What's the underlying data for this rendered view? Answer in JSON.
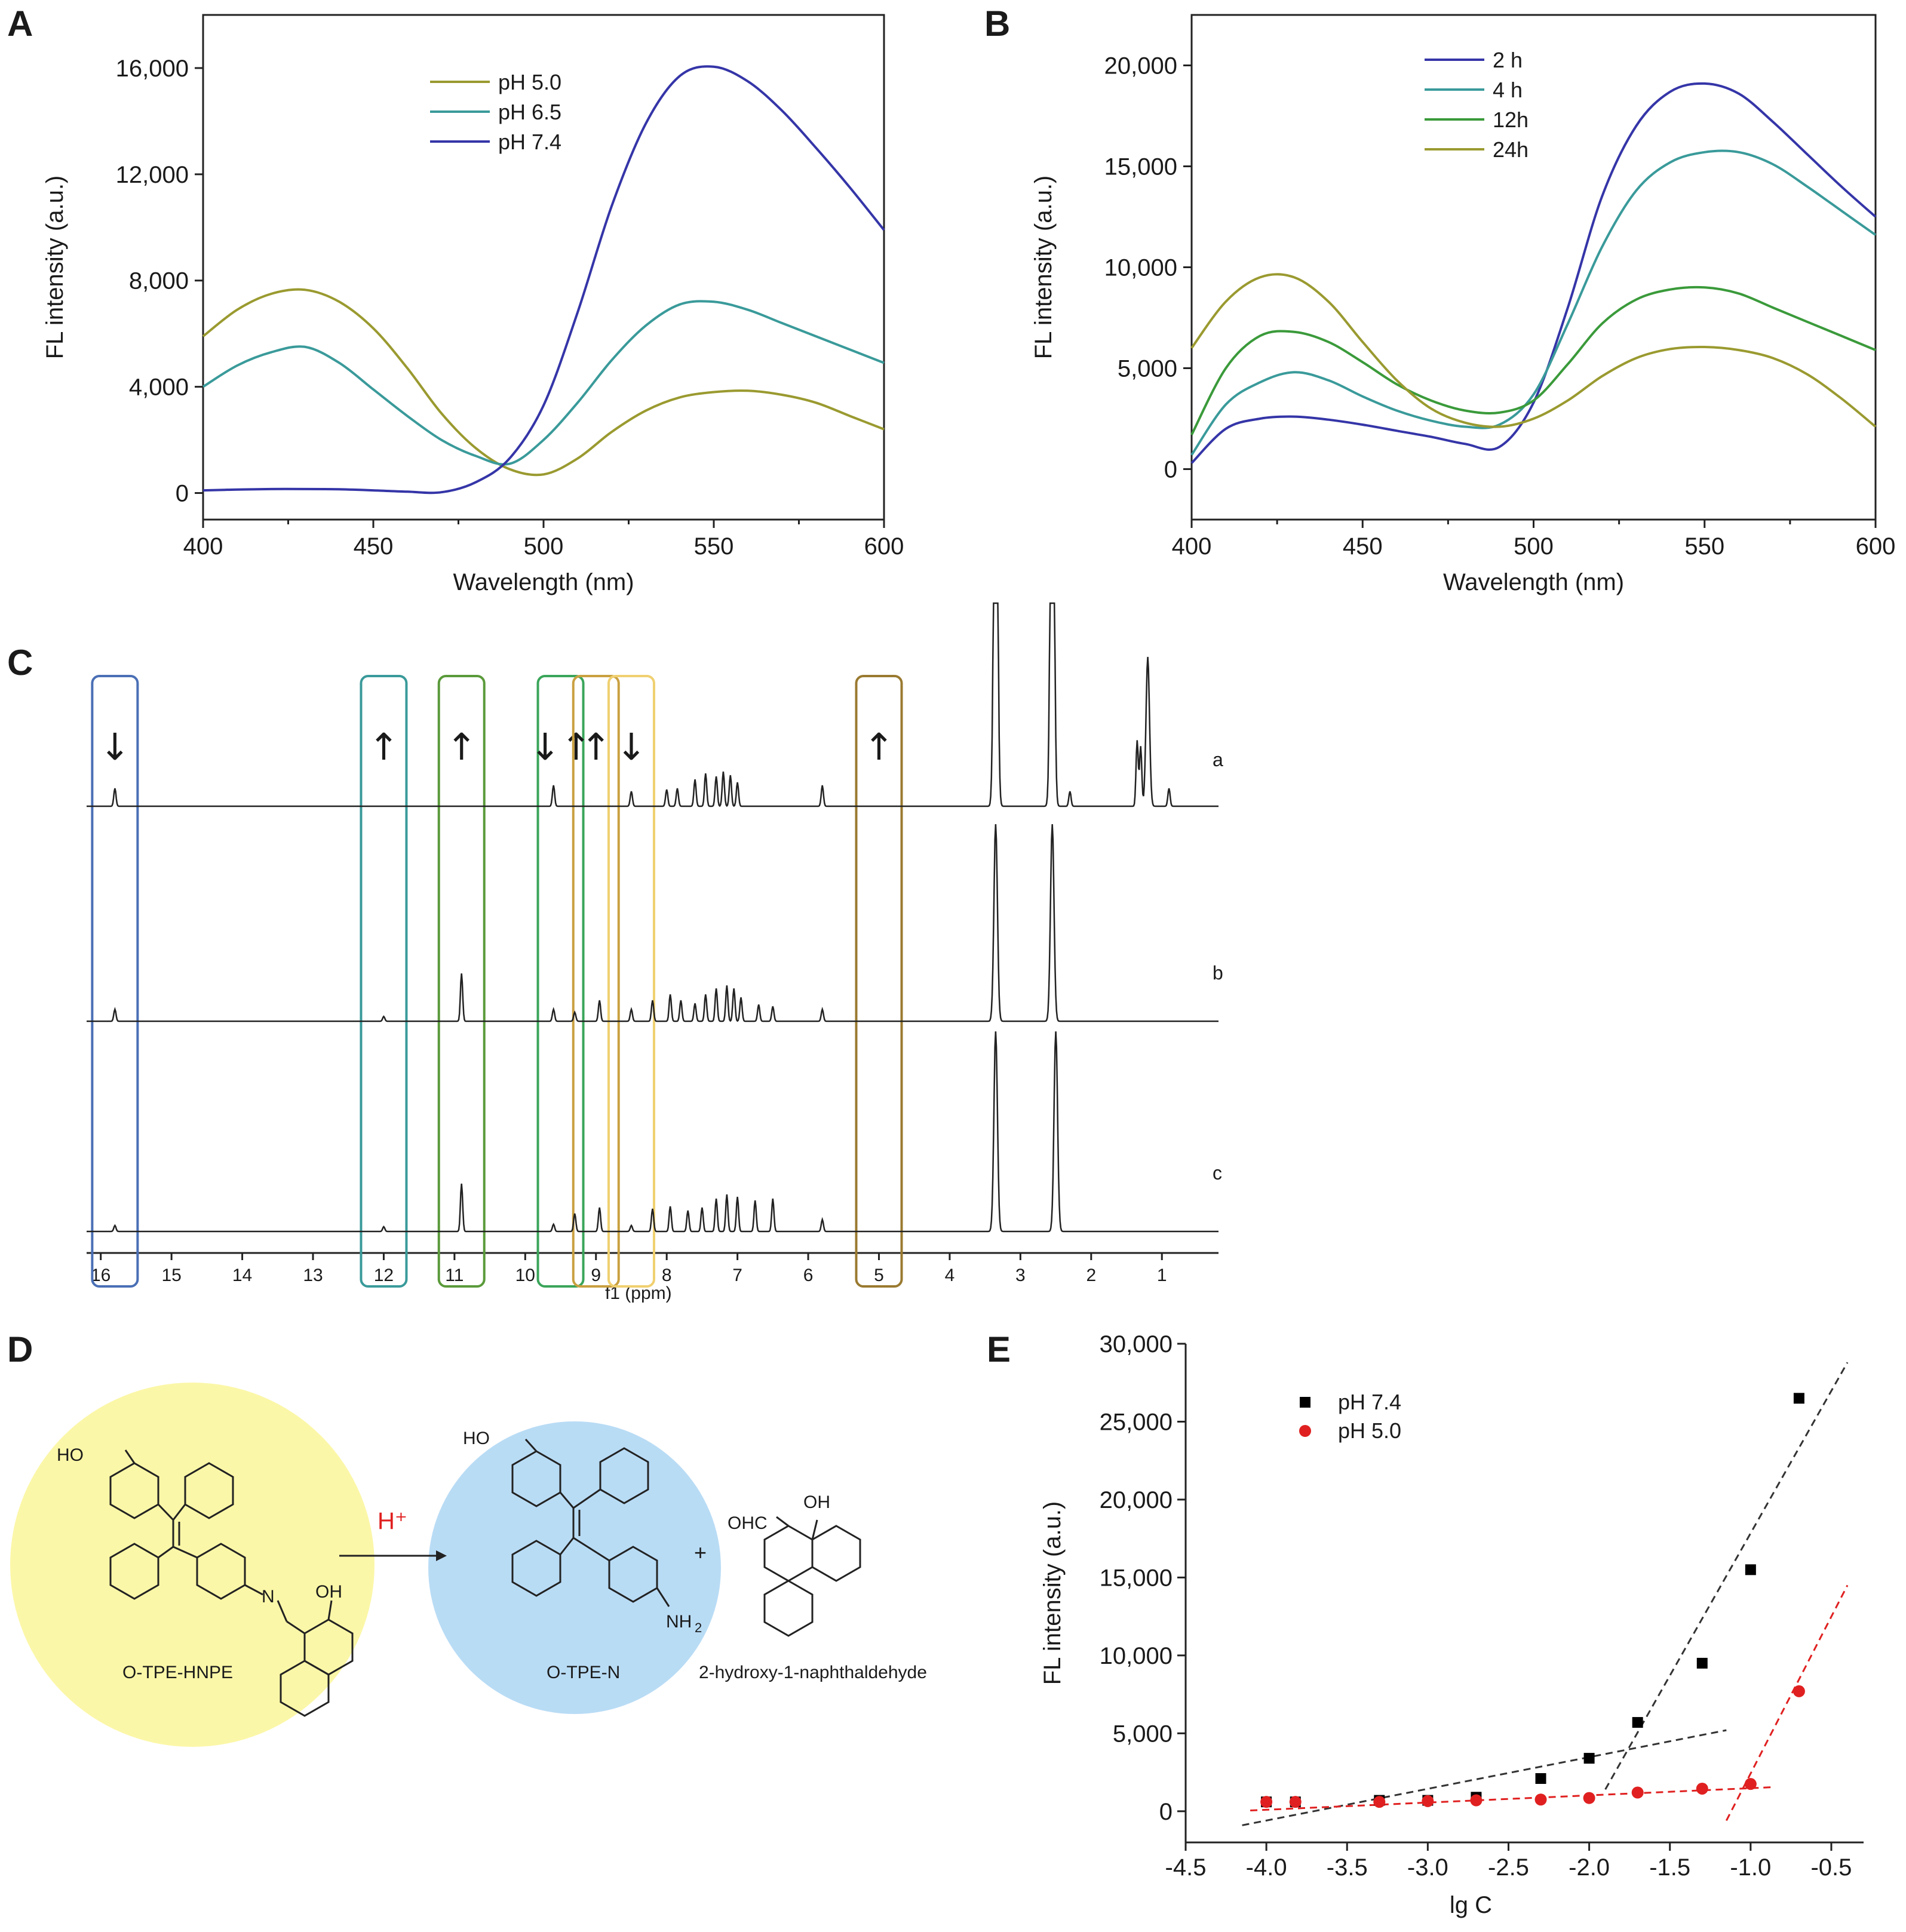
{
  "panels": {
    "A": "A",
    "B": "B",
    "C": "C",
    "D": "D",
    "E": "E"
  },
  "chart_data": [
    {
      "id": "A",
      "type": "line",
      "xlabel": "Wavelength (nm)",
      "ylabel": "FL intensity (a.u.)",
      "xlim": [
        400,
        600
      ],
      "ylim": [
        -1000,
        18000
      ],
      "xticks": [
        400,
        450,
        500,
        550,
        600
      ],
      "yticks": [
        0,
        4000,
        8000,
        12000,
        16000
      ],
      "xtick_labels": [
        "400",
        "450",
        "500",
        "550",
        "600"
      ],
      "ytick_labels": [
        "0",
        "4,000",
        "8,000",
        "12,000",
        "16,000"
      ],
      "legend_position": "top-center",
      "x": [
        400,
        410,
        420,
        430,
        440,
        450,
        460,
        470,
        480,
        490,
        500,
        510,
        520,
        530,
        540,
        550,
        560,
        570,
        580,
        590,
        600
      ],
      "series": [
        {
          "name": "pH 5.0",
          "color": "#9a9a30",
          "values": [
            5900,
            6900,
            7500,
            7650,
            7200,
            6200,
            4700,
            3000,
            1700,
            900,
            700,
            1300,
            2300,
            3100,
            3600,
            3800,
            3850,
            3700,
            3400,
            2900,
            2400
          ]
        },
        {
          "name": "pH 6.5",
          "color": "#3a9a9a",
          "values": [
            4000,
            4800,
            5300,
            5500,
            4900,
            3900,
            2900,
            2000,
            1400,
            1100,
            2000,
            3400,
            5000,
            6300,
            7100,
            7200,
            6900,
            6400,
            5900,
            5400,
            4900
          ]
        },
        {
          "name": "pH 7.4",
          "color": "#3535a8",
          "values": [
            100,
            130,
            150,
            150,
            140,
            100,
            50,
            30,
            400,
            1300,
            3300,
            6800,
            10800,
            13900,
            15700,
            16050,
            15500,
            14400,
            13000,
            11500,
            9900
          ]
        }
      ]
    },
    {
      "id": "B",
      "type": "line",
      "xlabel": "Wavelength (nm)",
      "ylabel": "FL intensity (a.u.)",
      "xlim": [
        400,
        600
      ],
      "ylim": [
        -2500,
        22500
      ],
      "xticks": [
        400,
        450,
        500,
        550,
        600
      ],
      "yticks": [
        0,
        5000,
        10000,
        15000,
        20000
      ],
      "xtick_labels": [
        "400",
        "450",
        "500",
        "550",
        "600"
      ],
      "ytick_labels": [
        "0",
        "5,000",
        "10,000",
        "15,000",
        "20,000"
      ],
      "legend_position": "top-center",
      "x": [
        400,
        410,
        420,
        430,
        440,
        450,
        460,
        470,
        480,
        490,
        500,
        510,
        520,
        530,
        540,
        550,
        560,
        570,
        580,
        590,
        600
      ],
      "series": [
        {
          "name": "2 h",
          "color": "#3535a8",
          "values": [
            300,
            2000,
            2500,
            2600,
            2450,
            2200,
            1900,
            1600,
            1250,
            1100,
            3300,
            8000,
            13500,
            17000,
            18700,
            19100,
            18600,
            17200,
            15600,
            14000,
            12500
          ]
        },
        {
          "name": "4 h",
          "color": "#3a9a9a",
          "values": [
            700,
            3200,
            4300,
            4800,
            4400,
            3600,
            2900,
            2400,
            2100,
            2200,
            3700,
            7200,
            11000,
            13800,
            15200,
            15700,
            15700,
            15100,
            14000,
            12800,
            11600
          ]
        },
        {
          "name": "12h",
          "color": "#3a9a3a",
          "values": [
            1700,
            5000,
            6600,
            6800,
            6300,
            5300,
            4200,
            3400,
            2900,
            2800,
            3400,
            5200,
            7200,
            8400,
            8900,
            9000,
            8700,
            8000,
            7300,
            6600,
            5900
          ]
        },
        {
          "name": "24h",
          "color": "#9a9a30",
          "values": [
            6000,
            8300,
            9500,
            9500,
            8300,
            6300,
            4400,
            3000,
            2300,
            2100,
            2500,
            3400,
            4600,
            5500,
            5950,
            6050,
            5900,
            5500,
            4700,
            3500,
            2100
          ]
        }
      ]
    },
    {
      "id": "C",
      "type": "line",
      "xlabel": "f1 (ppm)",
      "xlim": [
        16.2,
        0.2
      ],
      "xticks": [
        16,
        15,
        14,
        13,
        12,
        11,
        10,
        9,
        8,
        7,
        6,
        5,
        4,
        3,
        2,
        1
      ],
      "xtick_labels": [
        "16",
        "15",
        "14",
        "13",
        "12",
        "11",
        "10",
        "9",
        "8",
        "7",
        "6",
        "5",
        "4",
        "3",
        "2",
        "1"
      ],
      "traces": [
        "a",
        "b",
        "c"
      ],
      "highlight_boxes": [
        {
          "center_ppm": 15.8,
          "color": "#4a6fb5",
          "arrow": "↓"
        },
        {
          "center_ppm": 12.0,
          "color": "#3a9a9a",
          "arrow": "↑"
        },
        {
          "center_ppm": 10.9,
          "color": "#5a9a3a",
          "arrow": "↑"
        },
        {
          "center_ppm": 9.5,
          "color": "#3aa55a",
          "arrow": "↓↑"
        },
        {
          "center_ppm": 9.0,
          "color": "#c9a040",
          "arrow": "↑"
        },
        {
          "center_ppm": 8.5,
          "color": "#f0d070",
          "arrow": "↓"
        },
        {
          "center_ppm": 5.0,
          "color": "#9a7a30",
          "arrow": "↑"
        }
      ]
    },
    {
      "id": "E",
      "type": "scatter",
      "xlabel": "lg C",
      "ylabel": "FL intensity (a.u.)",
      "xlim": [
        -4.5,
        -0.3
      ],
      "ylim": [
        -2000,
        30000
      ],
      "xticks": [
        -4.5,
        -4.0,
        -3.5,
        -3.0,
        -2.5,
        -2.0,
        -1.5,
        -1.0,
        -0.5
      ],
      "yticks": [
        0,
        5000,
        10000,
        15000,
        20000,
        25000,
        30000
      ],
      "xtick_labels": [
        "-4.5",
        "-4.0",
        "-3.5",
        "-3.0",
        "-2.5",
        "-2.0",
        "-1.5",
        "-1.0",
        "-0.5"
      ],
      "ytick_labels": [
        "0",
        "5,000",
        "10,000",
        "15,000",
        "20,000",
        "25,000",
        "30,000"
      ],
      "legend_position": "top-left",
      "series": [
        {
          "name": "pH 7.4",
          "color": "#000000",
          "marker": "square",
          "x": [
            -4.0,
            -3.82,
            -3.3,
            -3.0,
            -2.7,
            -2.3,
            -2.0,
            -1.7,
            -1.3,
            -1.0,
            -0.7
          ],
          "y": [
            600,
            600,
            700,
            700,
            900,
            2100,
            3400,
            5700,
            9500,
            15500,
            26500
          ]
        },
        {
          "name": "pH 5.0",
          "color": "#e02020",
          "marker": "circle",
          "x": [
            -4.0,
            -3.82,
            -3.3,
            -3.0,
            -2.7,
            -2.3,
            -2.0,
            -1.7,
            -1.3,
            -1.0,
            -0.7
          ],
          "y": [
            600,
            600,
            600,
            650,
            700,
            750,
            850,
            1200,
            1450,
            1750,
            7700
          ]
        }
      ],
      "fit_lines": [
        {
          "color": "#333333",
          "x": [
            -4.15,
            -1.15
          ],
          "y": [
            -900,
            5200
          ]
        },
        {
          "color": "#333333",
          "x": [
            -1.9,
            -0.4
          ],
          "y": [
            1400,
            28800
          ]
        },
        {
          "color": "#e02020",
          "x": [
            -4.1,
            -0.85
          ],
          "y": [
            50,
            1550
          ]
        },
        {
          "color": "#e02020",
          "x": [
            -1.15,
            -0.4
          ],
          "y": [
            -600,
            14500
          ]
        }
      ]
    }
  ],
  "scheme": {
    "reactant": "O-TPE-HNPE",
    "reagent": "H⁺",
    "product1": "O-TPE-N",
    "product2": "2-hydroxy-1-naphthaldehyde",
    "plus": "+",
    "ho": "HO",
    "oh": "OH",
    "n": "N",
    "nh2": "NH",
    "sub2": "2",
    "ohc": "OHC"
  }
}
